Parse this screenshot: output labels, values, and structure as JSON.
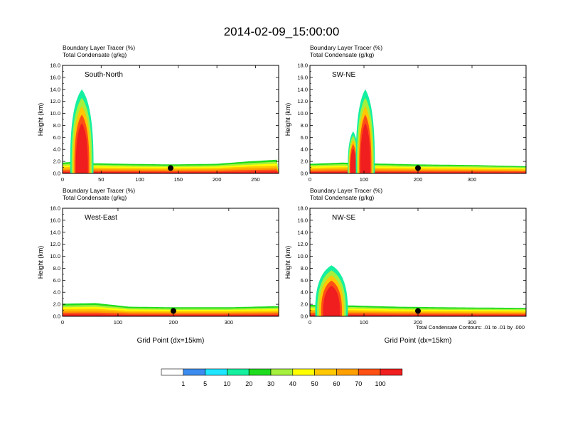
{
  "figure_title": "2014-02-09_15:00:00",
  "contour_note": "Total Condensate Contours: .01 to .01 by .000",
  "colorbar": {
    "labels": [
      "1",
      "5",
      "10",
      "20",
      "30",
      "40",
      "50",
      "60",
      "70",
      "100"
    ],
    "colors": [
      "#ffffff",
      "#3c8cf0",
      "#1ee6ff",
      "#14f0a0",
      "#1edc1e",
      "#a5f03c",
      "#ffff00",
      "#ffc800",
      "#ffa000",
      "#ff5014",
      "#f01e1e"
    ]
  },
  "chart_data": [
    {
      "type": "heatmap",
      "title": "Boundary Layer Tracer (%)",
      "subtitle": "Total Condensate (g/kg)",
      "panel_label": "South-North",
      "ylabel": "Height (km)",
      "xlabel": "",
      "xlim": [
        0,
        280
      ],
      "xticks": [
        0,
        50,
        100,
        150,
        200,
        250
      ],
      "ylim": [
        0,
        18
      ],
      "yticks": [
        "0.0",
        "2.0",
        "4.0",
        "6.0",
        "8.0",
        "10.0",
        "12.0",
        "14.0",
        "16.0",
        "18.0"
      ],
      "marker_x": 140,
      "boundary_layer_top_km": [
        [
          0,
          1.8
        ],
        [
          20,
          2.0
        ],
        [
          40,
          1.7
        ],
        [
          80,
          1.6
        ],
        [
          140,
          1.5
        ],
        [
          200,
          1.6
        ],
        [
          240,
          2.0
        ],
        [
          280,
          2.3
        ]
      ],
      "plume": [
        {
          "x0": 10,
          "x1": 40,
          "top_km": 14.0
        }
      ]
    },
    {
      "type": "heatmap",
      "title": "Boundary Layer Tracer (%)",
      "subtitle": "Total Condensate (g/kg)",
      "panel_label": "SW-NE",
      "ylabel": "Height (km)",
      "xlabel": "",
      "xlim": [
        0,
        400
      ],
      "xticks": [
        0,
        100,
        200,
        300
      ],
      "ylim": [
        0,
        18
      ],
      "yticks": [
        "0.0",
        "2.0",
        "4.0",
        "6.0",
        "8.0",
        "10.0",
        "12.0",
        "14.0",
        "16.0",
        "18.0"
      ],
      "marker_x": 200,
      "boundary_layer_top_km": [
        [
          0,
          1.6
        ],
        [
          60,
          1.8
        ],
        [
          100,
          1.7
        ],
        [
          200,
          1.5
        ],
        [
          300,
          1.4
        ],
        [
          400,
          1.2
        ]
      ],
      "plume": [
        {
          "x0": 70,
          "x1": 90,
          "top_km": 7.0
        },
        {
          "x0": 85,
          "x1": 120,
          "top_km": 14.0
        }
      ]
    },
    {
      "type": "heatmap",
      "title": "Boundary Layer Tracer (%)",
      "subtitle": "Total Condensate (g/kg)",
      "panel_label": "West-East",
      "ylabel": "Height (km)",
      "xlabel": "Grid Point (dx=15km)",
      "xlim": [
        0,
        390
      ],
      "xticks": [
        0,
        100,
        200,
        300
      ],
      "ylim": [
        0,
        18
      ],
      "yticks": [
        "0.0",
        "2.0",
        "4.0",
        "6.0",
        "8.0",
        "10.0",
        "12.0",
        "14.0",
        "16.0",
        "18.0"
      ],
      "marker_x": 200,
      "boundary_layer_top_km": [
        [
          0,
          2.1
        ],
        [
          60,
          2.2
        ],
        [
          120,
          1.6
        ],
        [
          200,
          1.5
        ],
        [
          300,
          1.5
        ],
        [
          390,
          1.7
        ]
      ],
      "plume": []
    },
    {
      "type": "heatmap",
      "title": "Boundary Layer Tracer (%)",
      "subtitle": "Total Condensate (g/kg)",
      "panel_label": "NW-SE",
      "ylabel": "Height (km)",
      "xlabel": "Grid Point (dx=15km)",
      "xlim": [
        0,
        400
      ],
      "xticks": [
        0,
        100,
        200,
        300
      ],
      "ylim": [
        0,
        18
      ],
      "yticks": [
        "0.0",
        "2.0",
        "4.0",
        "6.0",
        "8.0",
        "10.0",
        "12.0",
        "14.0",
        "16.0",
        "18.0"
      ],
      "marker_x": 200,
      "boundary_layer_top_km": [
        [
          0,
          1.9
        ],
        [
          80,
          1.8
        ],
        [
          160,
          1.6
        ],
        [
          250,
          1.5
        ],
        [
          400,
          1.4
        ]
      ],
      "plume": [
        {
          "x0": 10,
          "x1": 70,
          "top_km": 8.5
        }
      ]
    }
  ]
}
